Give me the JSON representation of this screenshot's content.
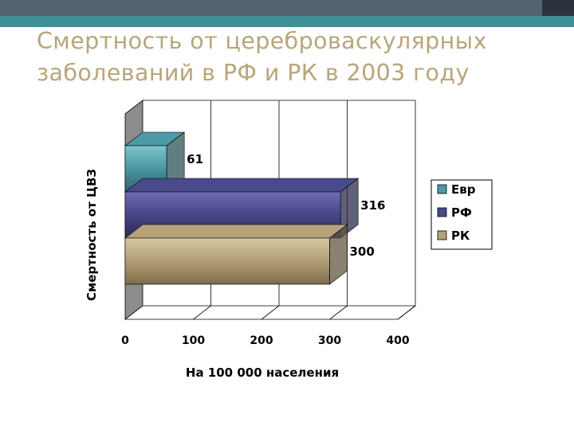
{
  "slide": {
    "title": "Смертность от цереброваскулярных\nзаболеваний в РФ и РК в 2003 году"
  },
  "colors": {
    "header_bar": "#54636e",
    "header_accent": "#3f8f96",
    "title_text": "#b8a57a"
  },
  "chart_data": {
    "type": "bar",
    "orientation": "horizontal",
    "three_d": true,
    "categories": [
      "Евр",
      "РФ",
      "РК"
    ],
    "values": [
      61,
      316,
      300
    ],
    "series": [
      {
        "name": "Евр",
        "value": 61,
        "color": "#4e9aa6"
      },
      {
        "name": "РФ",
        "value": 316,
        "color": "#4a4a8a"
      },
      {
        "name": "РК",
        "value": 300,
        "color": "#b5a27a"
      }
    ],
    "xlabel": "На 100 000 населения",
    "ylabel": "Смертность от ЦВЗ",
    "xlim": [
      0,
      400
    ],
    "xticks": [
      "0",
      "100",
      "200",
      "300",
      "400"
    ],
    "grid": true,
    "legend_position": "right"
  }
}
